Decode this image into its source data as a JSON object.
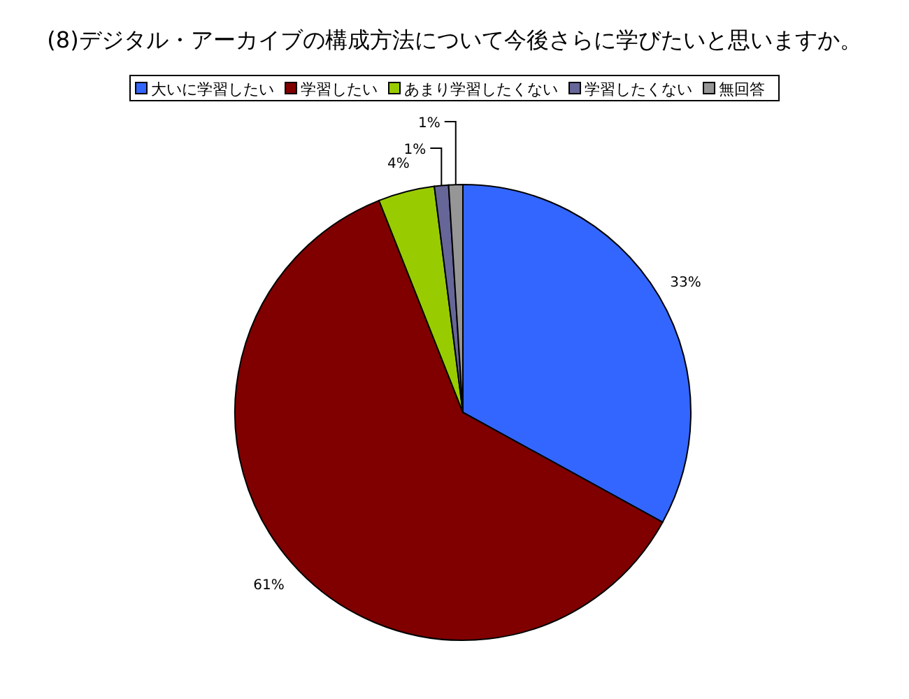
{
  "chart_data": {
    "type": "pie",
    "title": "(8)デジタル・アーカイブの構成方法について今後さらに学びたいと思いますか。",
    "categories": [
      "大いに学習したい",
      "学習したい",
      "あまり学習したくない",
      "学習したくない",
      "無回答"
    ],
    "values": [
      33,
      61,
      4,
      1,
      1
    ],
    "colors": [
      "#3366ff",
      "#800000",
      "#99cc00",
      "#666699",
      "#969696"
    ],
    "value_labels": [
      "33%",
      "61%",
      "4%",
      "1%",
      "1%"
    ],
    "legend": "top"
  }
}
